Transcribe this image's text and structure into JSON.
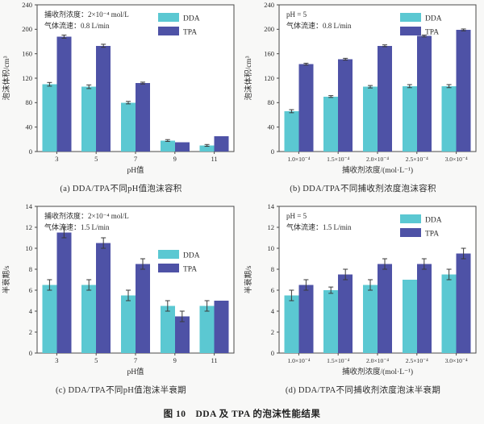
{
  "figure_caption": "图 10　DDA 及 TPA 的泡沫性能结果",
  "colors": {
    "series": [
      "#5bc8d2",
      "#4e52a6"
    ],
    "axis": "#4a4a4a",
    "error_bar": "#3a3a3a",
    "text": "#2b2b2b"
  },
  "legend_labels": [
    "DDA",
    "TPA"
  ],
  "chart_data": [
    {
      "id": "a",
      "type": "bar",
      "caption": "(a) DDA/TPA不同pH值泡沫容积",
      "annotation": [
        "捕收剂浓度：2×10⁻⁴ mol/L",
        "气体流速：0.8 L/min"
      ],
      "xlabel": "pH值",
      "ylabel": "泡沫体积/cm³",
      "categories": [
        "3",
        "5",
        "7",
        "9",
        "11"
      ],
      "ylim": [
        0,
        240
      ],
      "ytick_step": 40,
      "grid": false,
      "legend_position": "top-right",
      "legend_y": 16,
      "tick_font": 8.5,
      "series": [
        {
          "name": "DDA",
          "values": [
            110,
            106,
            80,
            18,
            10
          ],
          "errors": [
            3,
            3,
            2,
            1.5,
            1.5
          ]
        },
        {
          "name": "TPA",
          "values": [
            188,
            173,
            112,
            15,
            25
          ],
          "errors": [
            2.5,
            2.5,
            1.5,
            0,
            0
          ]
        }
      ]
    },
    {
      "id": "b",
      "type": "bar",
      "caption": "(b) DDA/TPA不同捕收剂浓度泡沫容积",
      "annotation": [
        "pH = 5",
        "气体流速：0.8 L/min"
      ],
      "xlabel": "捕收剂浓度/(mol·L⁻¹)",
      "ylabel": "泡沫体积/cm³",
      "categories": [
        "1.0×10⁻⁴",
        "1.5×10⁻⁴",
        "2.0×10⁻⁴",
        "2.5×10⁻⁴",
        "3.0×10⁻⁴"
      ],
      "ylim": [
        0,
        240
      ],
      "ytick_step": 40,
      "grid": false,
      "legend_position": "top-right",
      "legend_y": 16,
      "tick_font": 7.6,
      "series": [
        {
          "name": "DDA",
          "values": [
            66,
            90,
            106,
            107,
            107
          ],
          "errors": [
            2.5,
            1.5,
            2,
            2.5,
            2.5
          ]
        },
        {
          "name": "TPA",
          "values": [
            143,
            151,
            173,
            189,
            199
          ],
          "errors": [
            1.5,
            1.5,
            1.5,
            1.5,
            1.5
          ]
        }
      ]
    },
    {
      "id": "c",
      "type": "bar",
      "caption": "(c) DDA/TPA不同pH值泡沫半衰期",
      "annotation": [
        "捕收剂浓度：2×10⁻⁴ mol/L",
        "气体流速：1.5 L/min"
      ],
      "xlabel": "pH值",
      "ylabel": "半衰期/s",
      "categories": [
        "3",
        "5",
        "7",
        "9",
        "11"
      ],
      "ylim": [
        0,
        14
      ],
      "ytick_step": 2,
      "grid": false,
      "legend_position": "right-upper",
      "legend_y": 60,
      "tick_font": 8.5,
      "series": [
        {
          "name": "DDA",
          "values": [
            6.5,
            6.5,
            5.5,
            4.5,
            4.5
          ],
          "errors": [
            0.5,
            0.5,
            0.5,
            0.5,
            0.5
          ]
        },
        {
          "name": "TPA",
          "values": [
            11.5,
            10.5,
            8.5,
            3.5,
            5.0
          ],
          "errors": [
            0.5,
            0.5,
            0.5,
            0.5,
            0
          ]
        }
      ]
    },
    {
      "id": "d",
      "type": "bar",
      "caption": "(d) DDA/TPA不同捕收剂浓度泡沫半衰期",
      "annotation": [
        "pH = 5",
        "气体流速：1.5 L/min"
      ],
      "xlabel": "捕收剂浓度/(mol·L⁻¹)",
      "ylabel": "半衰期/s",
      "categories": [
        "1.0×10⁻⁴",
        "1.5×10⁻⁴",
        "2.0×10⁻⁴",
        "2.5×10⁻⁴",
        "3.0×10⁻⁴"
      ],
      "ylim": [
        0,
        14
      ],
      "ytick_step": 2,
      "grid": false,
      "legend_position": "top-right",
      "legend_y": 16,
      "tick_font": 7.6,
      "series": [
        {
          "name": "DDA",
          "values": [
            5.5,
            6.0,
            6.5,
            7.0,
            7.5
          ],
          "errors": [
            0.5,
            0.3,
            0.5,
            0,
            0.5
          ]
        },
        {
          "name": "TPA",
          "values": [
            6.5,
            7.5,
            8.5,
            8.5,
            9.5
          ],
          "errors": [
            0.5,
            0.5,
            0.5,
            0.5,
            0.5
          ]
        }
      ]
    }
  ]
}
